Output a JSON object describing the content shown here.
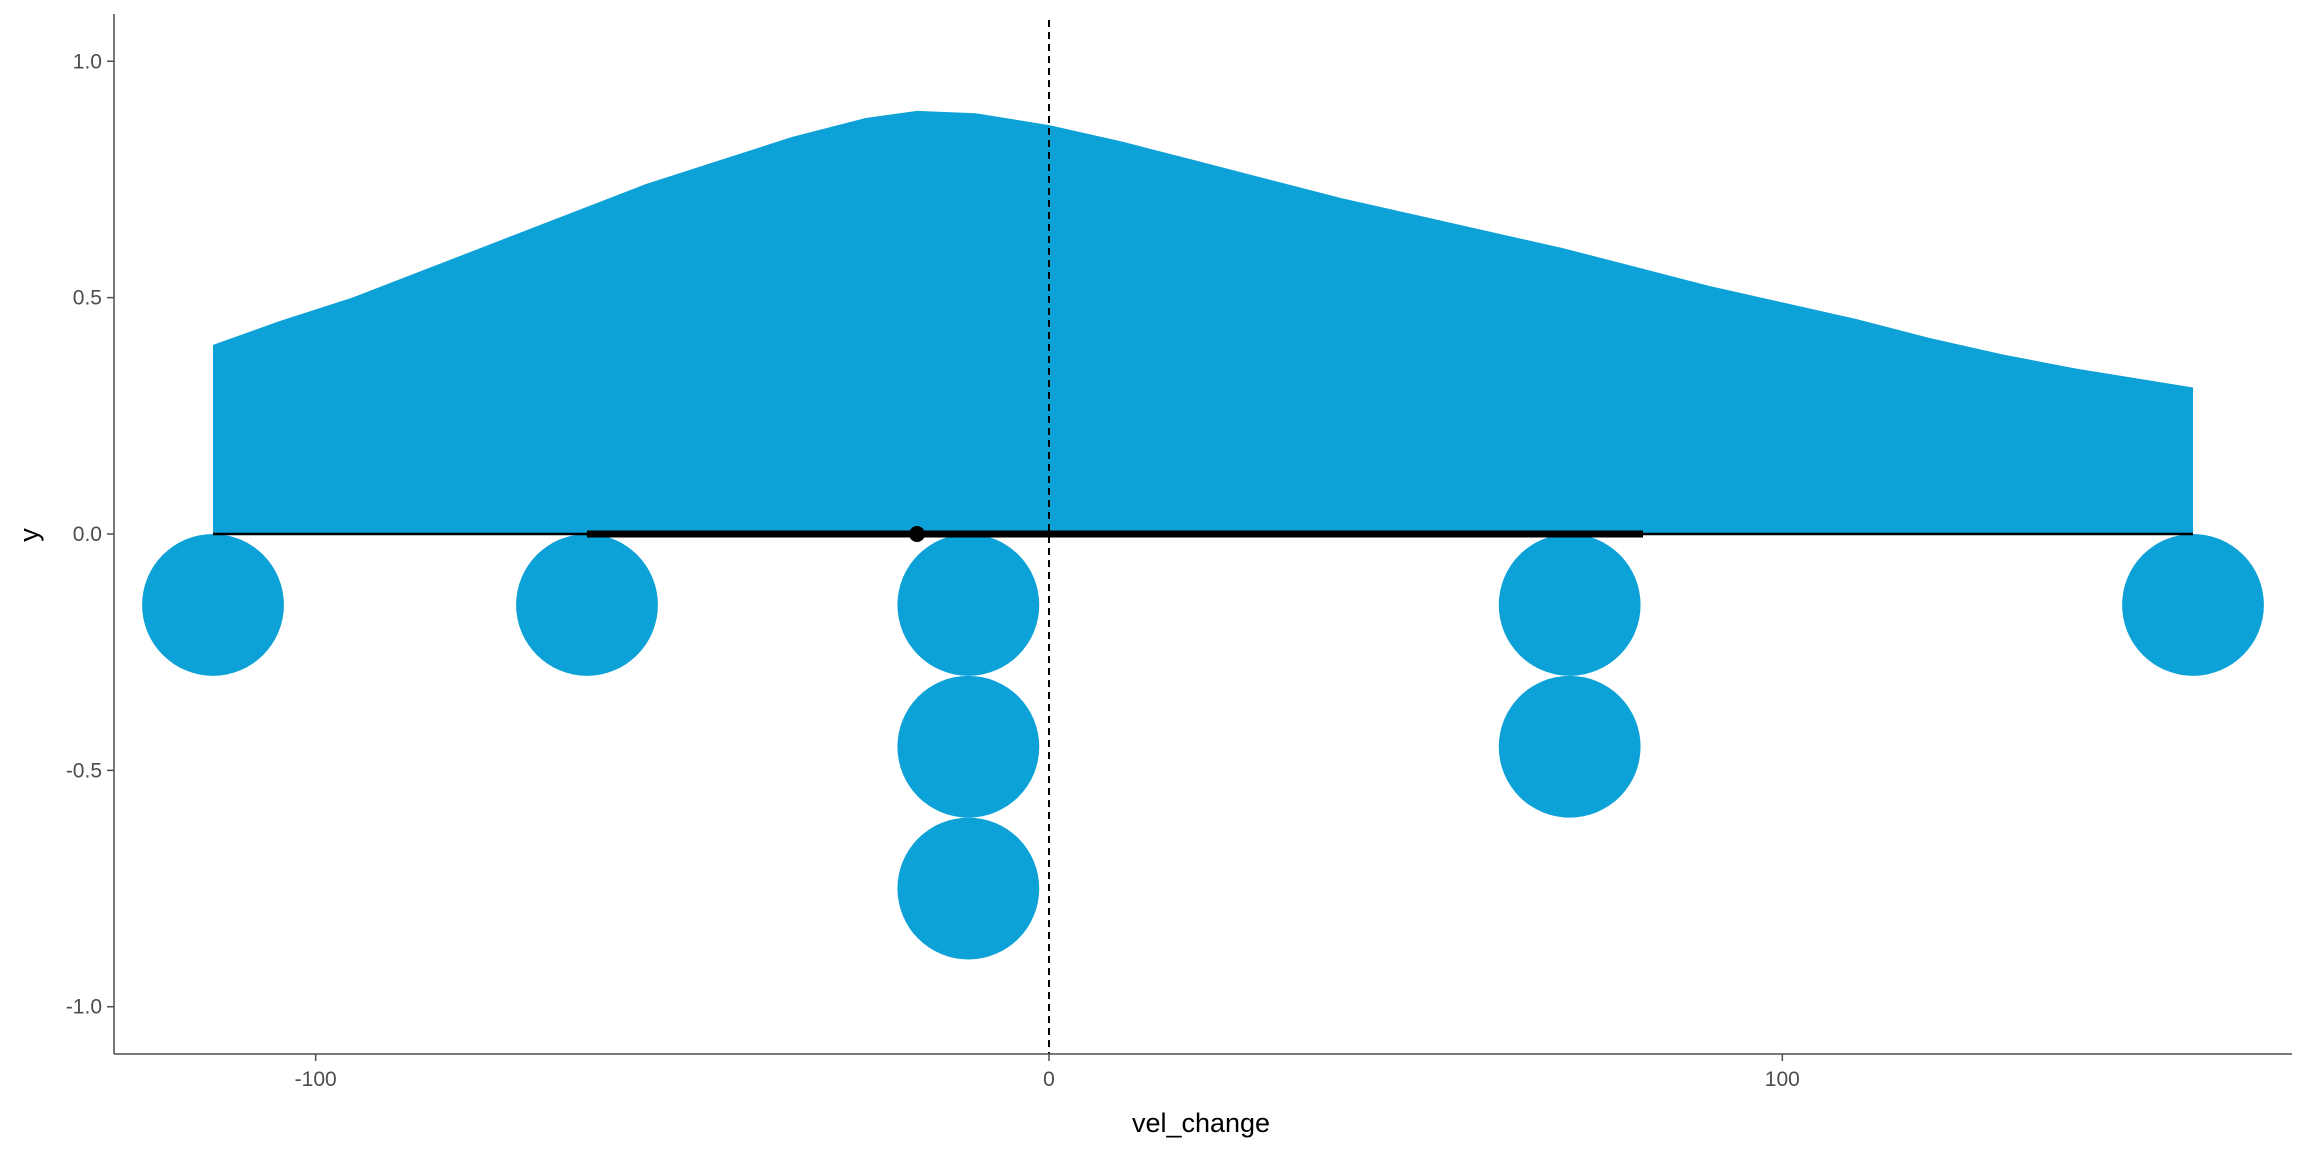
{
  "chart_data": {
    "type": "area",
    "title": "",
    "xlabel": "vel_change",
    "ylabel": "y",
    "xlim": [
      -127.5,
      169.5
    ],
    "ylim": [
      -1.1,
      1.1
    ],
    "x_ticks": [
      -100,
      0,
      100
    ],
    "x_tick_labels": [
      "-100",
      "0",
      "100"
    ],
    "y_ticks": [
      -1.0,
      -0.5,
      0.0,
      0.5,
      1.0
    ],
    "y_tick_labels": [
      "-1.0",
      "-0.5",
      "0.0",
      "0.5",
      "1.0"
    ],
    "grid": false,
    "legend": "none",
    "colors": {
      "fill": "#0ca1d7",
      "interval": "#000000",
      "reference_line": "#000000",
      "axis": "#4d4d4d"
    },
    "density": {
      "x": [
        -114,
        -105,
        -95,
        -85,
        -75,
        -65,
        -55,
        -45,
        -35,
        -25,
        -18,
        -10,
        0,
        10,
        20,
        30,
        40,
        50,
        60,
        70,
        80,
        90,
        100,
        110,
        120,
        130,
        140,
        150,
        156
      ],
      "y": [
        0.4,
        0.45,
        0.5,
        0.56,
        0.62,
        0.68,
        0.74,
        0.79,
        0.84,
        0.88,
        0.895,
        0.89,
        0.865,
        0.83,
        0.79,
        0.75,
        0.71,
        0.675,
        0.64,
        0.605,
        0.565,
        0.525,
        0.49,
        0.455,
        0.415,
        0.38,
        0.35,
        0.325,
        0.31
      ]
    },
    "dots": [
      {
        "x": -114,
        "y": -0.15
      },
      {
        "x": -63,
        "y": -0.15
      },
      {
        "x": -11,
        "y": -0.15
      },
      {
        "x": -11,
        "y": -0.45
      },
      {
        "x": -11,
        "y": -0.75
      },
      {
        "x": 71,
        "y": -0.15
      },
      {
        "x": 71,
        "y": -0.45
      },
      {
        "x": 156,
        "y": -0.15
      }
    ],
    "dot_radius": 0.15,
    "interval": {
      "thin": [
        -114,
        156
      ],
      "thick": [
        -63,
        81
      ],
      "point": -18
    },
    "reference_line_x": 0
  }
}
